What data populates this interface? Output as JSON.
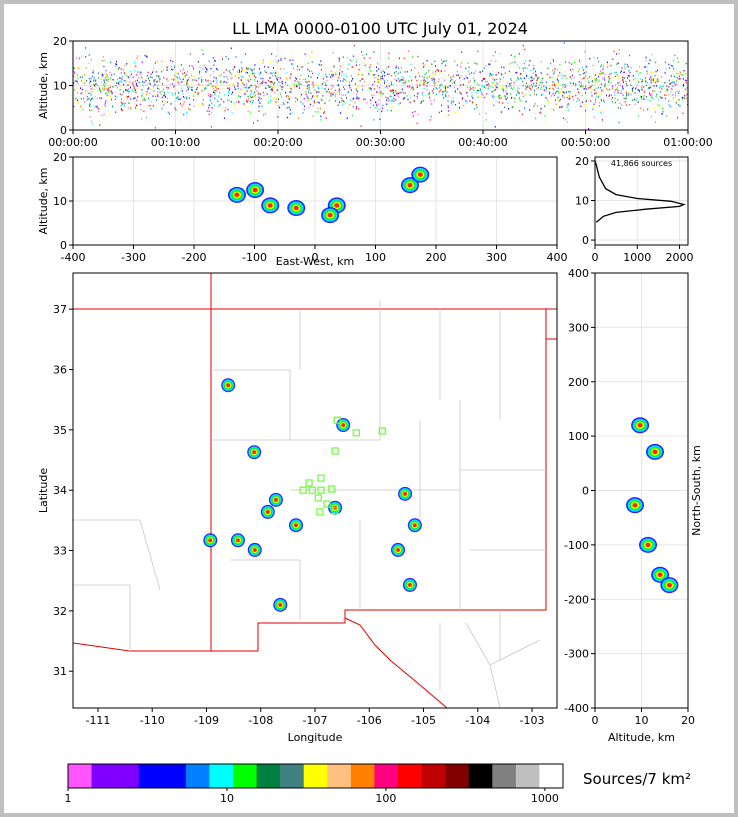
{
  "chart_data": [
    {
      "type": "time-height",
      "title": "LL LMA 0000-0100 UTC July 01, 2024",
      "ylabel": "Altitude, km",
      "xlim": [
        0,
        60
      ],
      "xticks": [
        {
          "value": 0,
          "label": "00:00:00"
        },
        {
          "value": 10,
          "label": "00:10:00"
        },
        {
          "value": 20,
          "label": "00:20:00"
        },
        {
          "value": 30,
          "label": "00:30:00"
        },
        {
          "value": 40,
          "label": "00:40:00"
        },
        {
          "value": 50,
          "label": "00:50:00"
        },
        {
          "value": 60,
          "label": "01:00:00"
        }
      ],
      "ylim": [
        0,
        20
      ],
      "yticks": [
        0,
        10,
        20
      ],
      "grid": true
    },
    {
      "type": "density",
      "xlabel": "East-West, km",
      "ylabel": "Altitude, km",
      "xlim": [
        -400,
        400
      ],
      "xticks": [
        -400,
        -300,
        -200,
        -100,
        0,
        100,
        200,
        300,
        400
      ],
      "ylim": [
        0,
        20
      ],
      "yticks": [
        0,
        10,
        20
      ],
      "grid": true,
      "series": [
        {
          "x": [
            -99,
            -74,
            -129,
            -31,
            36,
            157,
            174,
            25
          ],
          "values": [
            12.5,
            9,
            11.4,
            8.4,
            9,
            13.6,
            16,
            6.8
          ]
        }
      ]
    },
    {
      "type": "line",
      "annotation": "41,866 sources",
      "xlim": [
        0,
        2200
      ],
      "xticks": [
        0,
        1000,
        2000
      ],
      "ylim": [
        -1.25,
        21
      ],
      "yticks": [
        0,
        10,
        20
      ],
      "grid": true,
      "series": [
        {
          "color": "#000000",
          "x": [
            30,
            200,
            500,
            1200,
            2000,
            2100,
            1800,
            1000,
            500,
            250,
            100,
            30,
            0
          ],
          "values": [
            4.5,
            6,
            7,
            7.8,
            8.5,
            9,
            9.8,
            10.5,
            11.5,
            13,
            16,
            19,
            20
          ]
        }
      ]
    },
    {
      "type": "map",
      "xlabel": "Longitude",
      "ylabel": "Latitude",
      "xlim": [
        -111.46,
        -102.54
      ],
      "xticks": [
        -111,
        -110,
        -109,
        -108,
        -107,
        -106,
        -105,
        -104,
        -103
      ],
      "ylim": [
        30.39,
        37.6
      ],
      "yticks": [
        31,
        32,
        33,
        34,
        35,
        36,
        37
      ],
      "grid": false,
      "series": [
        {
          "x": [
            -108.12,
            -107.87,
            -108.11,
            -106.63,
            -106.48,
            -107.35,
            -105.47,
            -105.25,
            -105.16,
            -105.34,
            -107.64,
            -108.93,
            -108.6,
            -107.72,
            -108.42
          ],
          "values": [
            34.63,
            33.64,
            33.01,
            33.71,
            35.08,
            33.42,
            33.01,
            32.43,
            33.42,
            33.94,
            32.1,
            33.17,
            35.74,
            33.84,
            33.17
          ]
        }
      ],
      "stations": {
        "color": "#66ff33",
        "x": [
          -106.59,
          -106.24,
          -105.76,
          -106.63,
          -106.89,
          -107.11,
          -107.22,
          -107.05,
          -106.89,
          -106.69,
          -106.94,
          -106.78,
          -106.91,
          -106.63
        ],
        "values": [
          35.16,
          34.95,
          34.98,
          34.65,
          34.2,
          34.12,
          34.0,
          34.0,
          34.0,
          34.02,
          33.87,
          33.77,
          33.64,
          33.66
        ]
      }
    },
    {
      "type": "density",
      "xlabel": "Altitude, km",
      "ylabel": "North-South, km",
      "xlim": [
        0,
        20
      ],
      "xticks": [
        0,
        10,
        20
      ],
      "ylim": [
        -400,
        400
      ],
      "yticks": [
        -400,
        -300,
        -200,
        -100,
        0,
        100,
        200,
        300,
        400
      ],
      "grid": true,
      "series": [
        {
          "x": [
            9.7,
            12.9,
            8.6,
            11.4,
            14,
            16
          ],
          "values": [
            120,
            71,
            -27,
            -100,
            -155,
            -174
          ]
        }
      ]
    },
    {
      "type": "colorbar",
      "label": "Sources/7 km²",
      "log": true,
      "xlim": [
        1,
        1300
      ],
      "xticks": [
        1,
        10,
        100,
        1000
      ],
      "colors": [
        "#ff55ff",
        "#8000ff",
        "#8000ff",
        "#0000ff",
        "#0000ff",
        "#0080ff",
        "#00ffff",
        "#00ff00",
        "#008040",
        "#408080",
        "#ffff00",
        "#ffc080",
        "#ff8000",
        "#ff0080",
        "#ff0000",
        "#c00000",
        "#800000",
        "#000000",
        "#808080",
        "#c0c0c0",
        "#ffffff"
      ]
    }
  ]
}
